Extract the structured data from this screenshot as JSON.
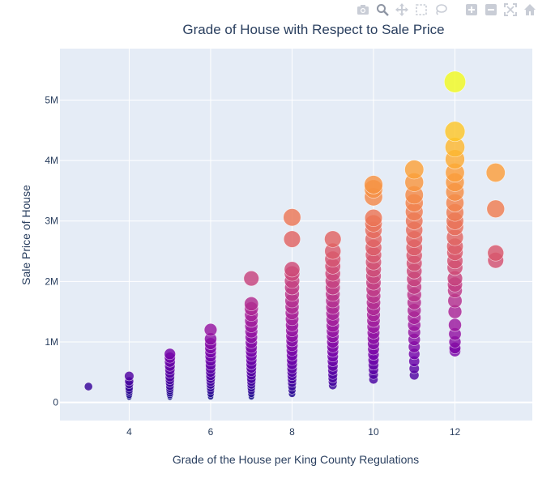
{
  "modebar": {
    "buttons": [
      "camera-icon",
      "zoom-icon",
      "pan-icon",
      "box-select-icon",
      "lasso-icon",
      "zoom-in-icon",
      "zoom-out-icon",
      "autoscale-icon",
      "reset-axes-icon"
    ],
    "icon_color": "#c9cdd6",
    "active_color": "#8e95a3"
  },
  "colors": {
    "plot_bg": "#e5ecf6",
    "grid": "#ffffff",
    "text": "#2a3f5f",
    "scale": [
      "#0d0887",
      "#46039f",
      "#7201a8",
      "#9c179e",
      "#bd3786",
      "#d8576b",
      "#ed7953",
      "#fb9f3a",
      "#fdca26",
      "#f0f921"
    ]
  },
  "chart_data": {
    "type": "scatter",
    "title": "Grade of House with Respect to Sale Price",
    "xlabel": "Grade of the House per King County Regulations",
    "ylabel": "Sale Price of House",
    "xlim": [
      2.3,
      13.9
    ],
    "ylim": [
      -300000,
      5850000
    ],
    "xticks": [
      4,
      6,
      8,
      10,
      12
    ],
    "xtick_labels": [
      "4",
      "6",
      "8",
      "10",
      "12"
    ],
    "yticks": [
      0,
      1000000,
      2000000,
      3000000,
      4000000,
      5000000
    ],
    "ytick_labels": [
      "0",
      "1M",
      "2M",
      "3M",
      "4M",
      "5M"
    ],
    "grid": true,
    "encoding": "marker size and color increase with sale price",
    "color_range": [
      80000,
      5300000
    ],
    "grades": [
      {
        "x": 3,
        "values": [
          262000
        ]
      },
      {
        "x": 4,
        "values": [
          80000,
          120000,
          160000,
          200000,
          240000,
          300000,
          350000,
          435000
        ]
      },
      {
        "x": 5,
        "values": [
          80000,
          120000,
          150000,
          190000,
          230000,
          270000,
          320000,
          370000,
          420000,
          480000,
          540000,
          600000,
          670000,
          740000,
          800000
        ]
      },
      {
        "x": 6,
        "values": [
          90000,
          140000,
          190000,
          240000,
          290000,
          340000,
          390000,
          440000,
          500000,
          560000,
          620000,
          690000,
          760000,
          830000,
          900000,
          970000,
          1050000,
          1200000
        ]
      },
      {
        "x": 7,
        "values": [
          90000,
          140000,
          190000,
          240000,
          290000,
          340000,
          390000,
          450000,
          510000,
          570000,
          630000,
          700000,
          770000,
          840000,
          910000,
          990000,
          1080000,
          1170000,
          1260000,
          1350000,
          1450000,
          1550000,
          1630000,
          2050000
        ]
      },
      {
        "x": 8,
        "values": [
          140000,
          200000,
          260000,
          320000,
          380000,
          440000,
          500000,
          560000,
          630000,
          700000,
          780000,
          860000,
          940000,
          1020000,
          1100000,
          1190000,
          1280000,
          1380000,
          1480000,
          1580000,
          1680000,
          1790000,
          1900000,
          2010000,
          2130000,
          2200000,
          2700000,
          3060000
        ]
      },
      {
        "x": 9,
        "values": [
          280000,
          340000,
          400000,
          460000,
          530000,
          600000,
          680000,
          760000,
          840000,
          920000,
          1000000,
          1090000,
          1180000,
          1270000,
          1370000,
          1470000,
          1570000,
          1680000,
          1790000,
          1900000,
          2010000,
          2130000,
          2250000,
          2370000,
          2500000,
          2700000
        ]
      },
      {
        "x": 10,
        "values": [
          380000,
          460000,
          540000,
          620000,
          700000,
          790000,
          880000,
          970000,
          1060000,
          1150000,
          1250000,
          1350000,
          1450000,
          1550000,
          1650000,
          1760000,
          1870000,
          1980000,
          2090000,
          2200000,
          2320000,
          2440000,
          2560000,
          2700000,
          2850000,
          2960000,
          3050000,
          3400000,
          3530000,
          3600000
        ]
      },
      {
        "x": 11,
        "values": [
          450000,
          560000,
          680000,
          800000,
          920000,
          1040000,
          1160000,
          1280000,
          1400000,
          1520000,
          1650000,
          1780000,
          1910000,
          2040000,
          2170000,
          2300000,
          2430000,
          2560000,
          2700000,
          2850000,
          3000000,
          3150000,
          3300000,
          3430000,
          3640000,
          3850000
        ]
      },
      {
        "x": 12,
        "values": [
          850000,
          900000,
          1000000,
          1130000,
          1280000,
          1500000,
          1680000,
          1850000,
          1950000,
          2050000,
          2230000,
          2340000,
          2480000,
          2580000,
          2730000,
          2900000,
          3000000,
          3140000,
          3300000,
          3480000,
          3640000,
          3800000,
          4020000,
          4220000,
          4480000,
          5300000
        ]
      },
      {
        "x": 13,
        "values": [
          2350000,
          2470000,
          3200000,
          3800000
        ]
      }
    ]
  }
}
